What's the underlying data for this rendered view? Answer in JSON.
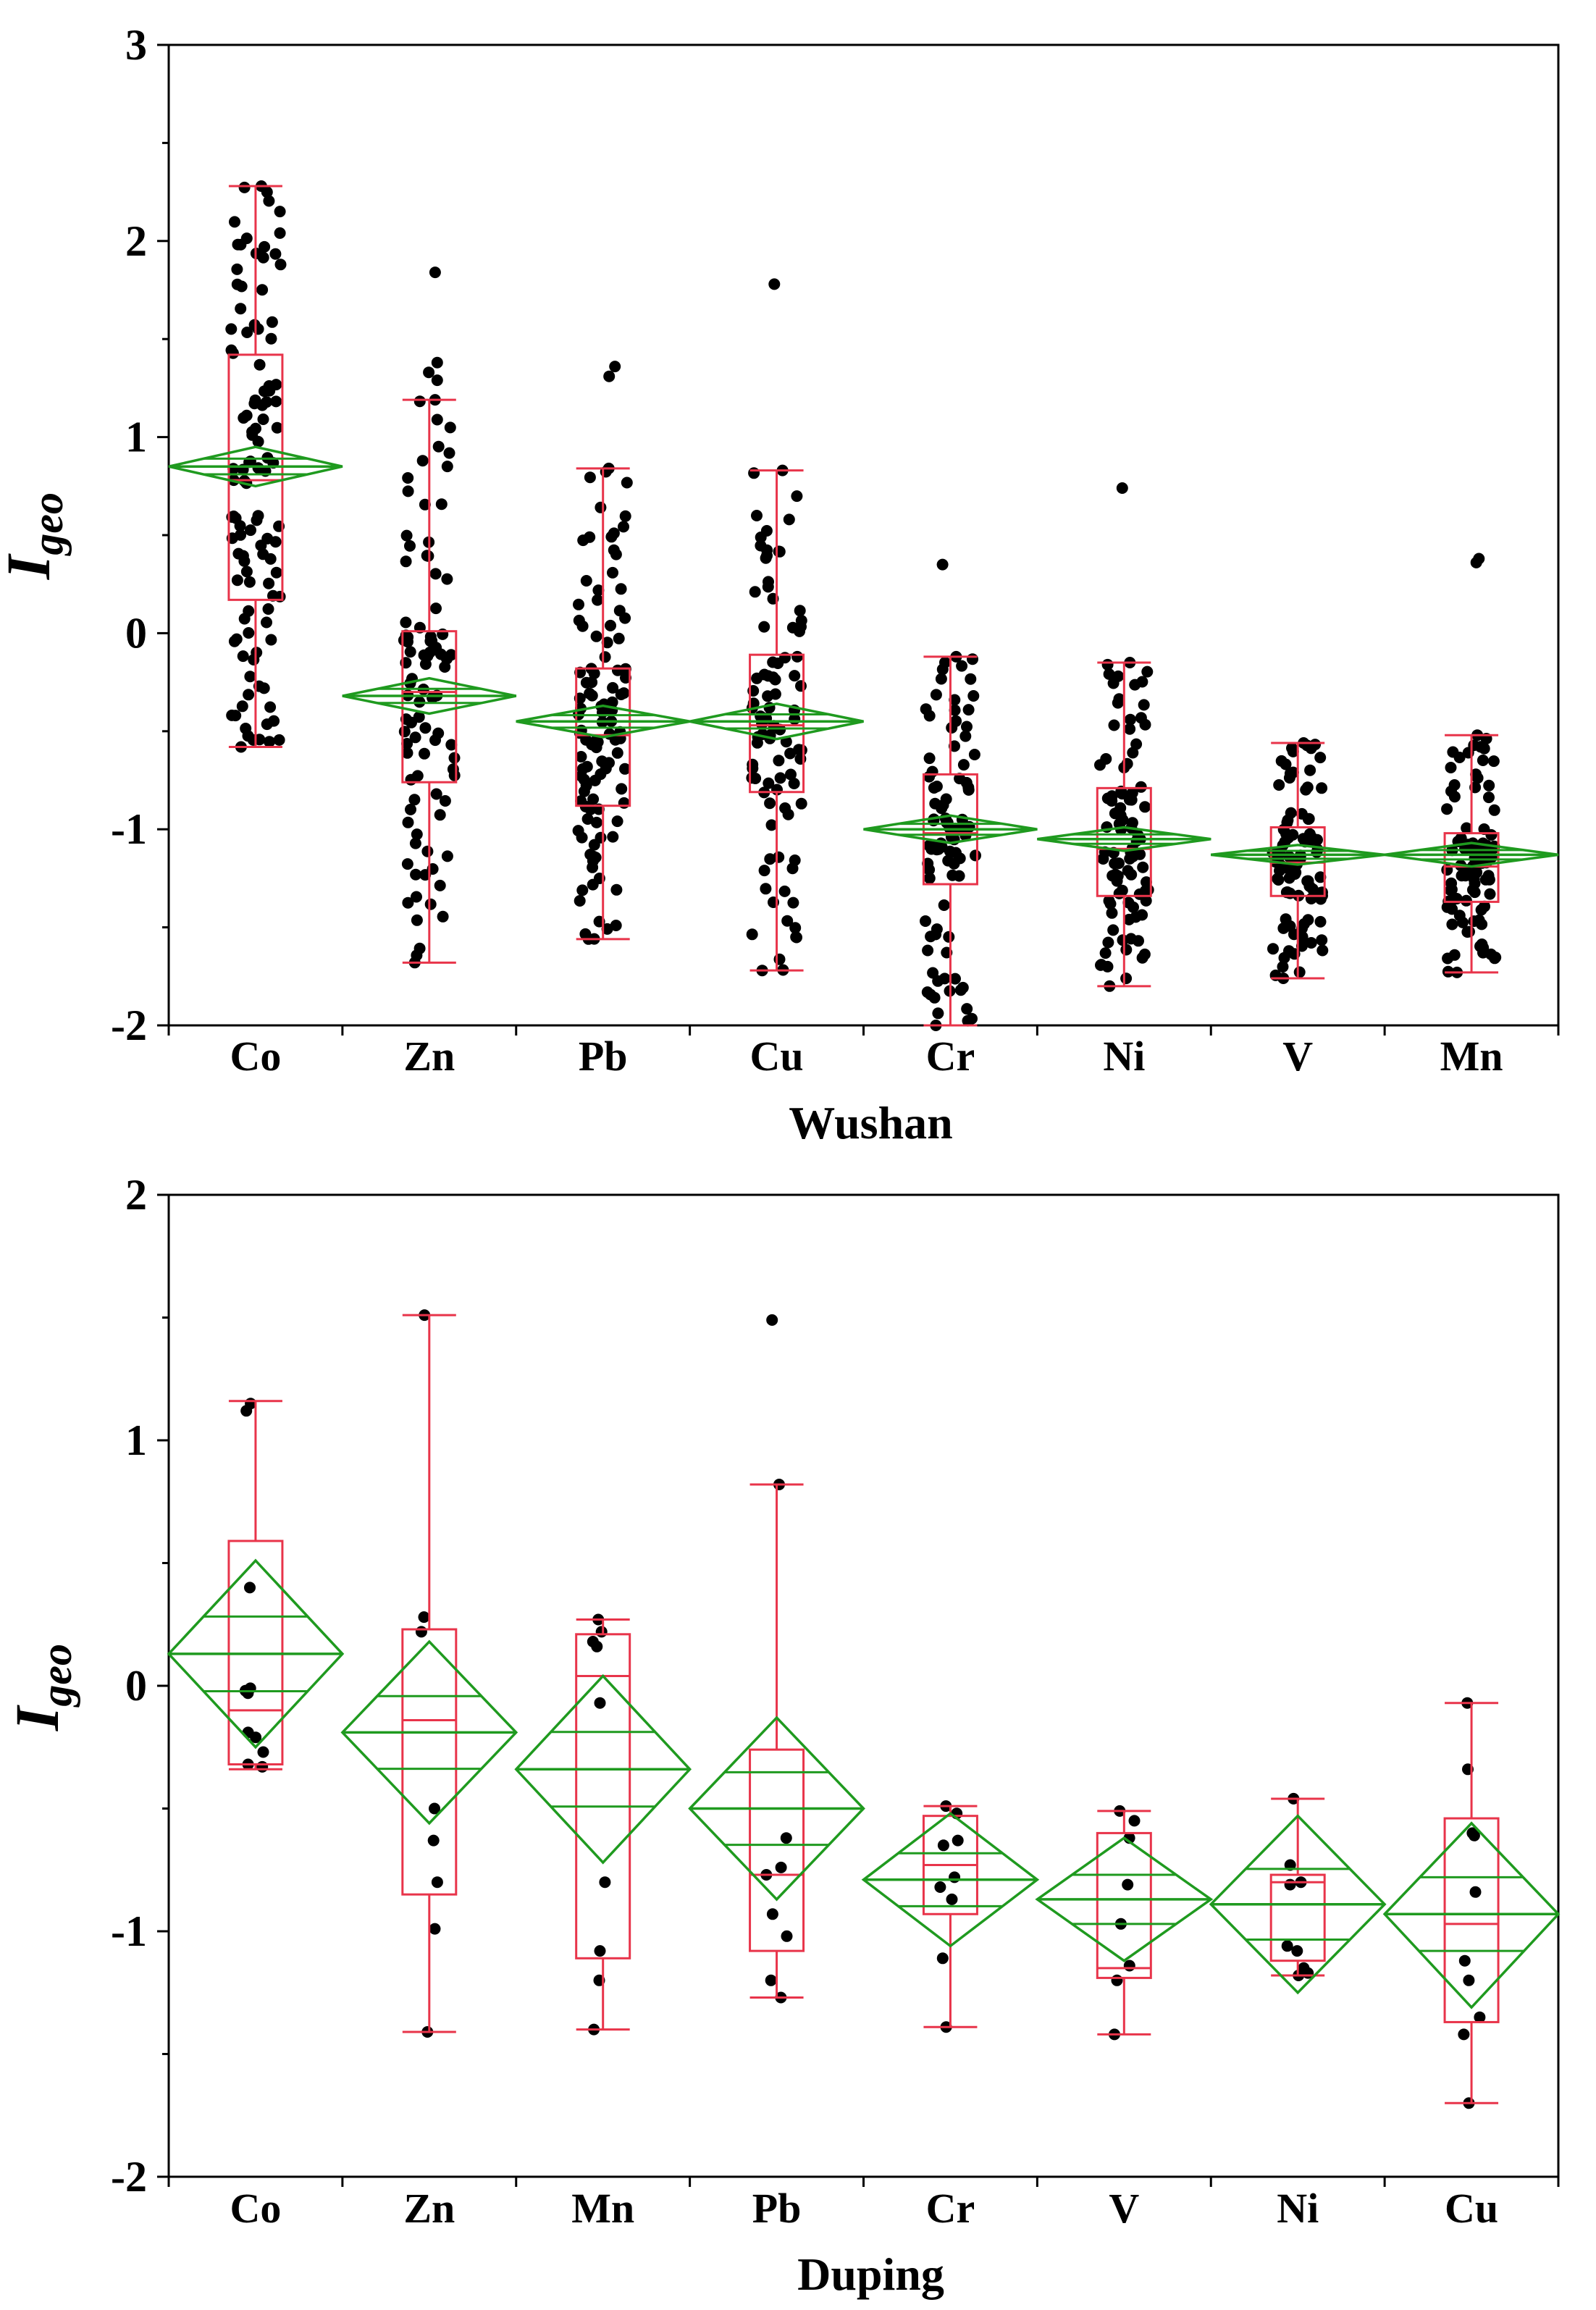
{
  "chart_data": [
    {
      "type": "box",
      "title": "",
      "xlabel": "Wushan",
      "ylabel_main": "I",
      "ylabel_sub": "geo",
      "ylim": [
        -2,
        3
      ],
      "yticks": [
        "-2",
        "-1",
        "0",
        "1",
        "2",
        "3"
      ],
      "categories": [
        "Co",
        "Zn",
        "Pb",
        "Cu",
        "Cr",
        "Ni",
        "V",
        "Mn"
      ],
      "colors": {
        "box": "#e8344a",
        "mean_diamond": "#1f9a1f",
        "points": "#000000"
      },
      "grid": false,
      "boxes": [
        {
          "name": "Co",
          "min": -0.58,
          "q1": 0.17,
          "median": 0.78,
          "q3": 1.42,
          "max": 2.28,
          "mean": 0.85,
          "ci": [
            0.75,
            0.95
          ],
          "n": 110,
          "seed": 11
        },
        {
          "name": "Zn",
          "min": -1.68,
          "q1": -0.76,
          "median": -0.3,
          "q3": 0.01,
          "max": 1.19,
          "mean": -0.32,
          "ci": [
            -0.41,
            -0.23
          ],
          "n": 90,
          "seed": 23,
          "extra": [
            1.84,
            1.38,
            1.33,
            1.29
          ]
        },
        {
          "name": "Pb",
          "min": -1.56,
          "q1": -0.88,
          "median": -0.52,
          "q3": -0.18,
          "max": 0.84,
          "mean": -0.45,
          "ci": [
            -0.53,
            -0.37
          ],
          "n": 110,
          "seed": 37,
          "extra": [
            1.36,
            1.31
          ]
        },
        {
          "name": "Cu",
          "min": -1.72,
          "q1": -0.81,
          "median": -0.47,
          "q3": -0.11,
          "max": 0.83,
          "mean": -0.45,
          "ci": [
            -0.54,
            -0.36
          ],
          "n": 90,
          "seed": 41,
          "extra": [
            1.78
          ]
        },
        {
          "name": "Cr",
          "min": -2.0,
          "q1": -1.28,
          "median": -1.02,
          "q3": -0.72,
          "max": -0.12,
          "mean": -1.0,
          "ci": [
            -1.07,
            -0.93
          ],
          "n": 90,
          "seed": 53,
          "extra": [
            0.35
          ]
        },
        {
          "name": "Ni",
          "min": -1.8,
          "q1": -1.34,
          "median": -1.1,
          "q3": -0.79,
          "max": -0.15,
          "mean": -1.05,
          "ci": [
            -1.11,
            -0.99
          ],
          "n": 90,
          "seed": 61,
          "extra": [
            0.74
          ]
        },
        {
          "name": "V",
          "min": -1.76,
          "q1": -1.34,
          "median": -1.17,
          "q3": -0.99,
          "max": -0.56,
          "mean": -1.13,
          "ci": [
            -1.18,
            -1.08
          ],
          "n": 90,
          "seed": 71
        },
        {
          "name": "Mn",
          "min": -1.73,
          "q1": -1.37,
          "median": -1.19,
          "q3": -1.02,
          "max": -0.52,
          "mean": -1.13,
          "ci": [
            -1.19,
            -1.07
          ],
          "n": 90,
          "seed": 83,
          "extra": [
            0.38,
            0.36
          ]
        }
      ]
    },
    {
      "type": "box",
      "title": "",
      "xlabel": "Duping",
      "ylabel_main": "I",
      "ylabel_sub": "geo",
      "ylim": [
        -2,
        2
      ],
      "yticks": [
        "-2",
        "-1",
        "0",
        "1",
        "2"
      ],
      "categories": [
        "Co",
        "Zn",
        "Mn",
        "Pb",
        "Cr",
        "V",
        "Ni",
        "Cu"
      ],
      "colors": {
        "box": "#e8344a",
        "mean_diamond": "#1f9a1f",
        "points": "#000000"
      },
      "grid": false,
      "boxes": [
        {
          "name": "Co",
          "min": -0.34,
          "q1": -0.32,
          "median": -0.1,
          "q3": 0.59,
          "max": 1.16,
          "mean": 0.13,
          "ci": [
            -0.25,
            0.51
          ],
          "points": [
            1.15,
            1.12,
            0.4,
            -0.01,
            -0.02,
            -0.03,
            -0.19,
            -0.21,
            -0.27,
            -0.32,
            -0.33
          ]
        },
        {
          "name": "Zn",
          "min": -1.41,
          "q1": -0.85,
          "median": -0.14,
          "q3": 0.23,
          "max": 1.51,
          "mean": -0.19,
          "ci": [
            -0.56,
            0.18
          ],
          "points": [
            1.51,
            0.28,
            0.22,
            -0.5,
            -0.63,
            -0.8,
            -0.99,
            -1.41
          ]
        },
        {
          "name": "Mn",
          "min": -1.4,
          "q1": -1.11,
          "median": 0.04,
          "q3": 0.21,
          "max": 0.27,
          "mean": -0.34,
          "ci": [
            -0.72,
            0.04
          ],
          "points": [
            0.27,
            0.22,
            0.18,
            0.16,
            -0.07,
            -0.8,
            -1.08,
            -1.2,
            -1.4
          ]
        },
        {
          "name": "Pb",
          "min": -1.27,
          "q1": -1.08,
          "median": -0.77,
          "q3": -0.26,
          "max": 0.82,
          "mean": -0.5,
          "ci": [
            -0.87,
            -0.13
          ],
          "points": [
            1.49,
            0.82,
            -0.62,
            -0.74,
            -0.77,
            -0.93,
            -1.02,
            -1.2,
            -1.27
          ]
        },
        {
          "name": "Cr",
          "min": -1.39,
          "q1": -0.93,
          "median": -0.73,
          "q3": -0.53,
          "max": -0.49,
          "mean": -0.79,
          "ci": [
            -1.06,
            -0.52
          ],
          "points": [
            -0.49,
            -0.52,
            -0.63,
            -0.65,
            -0.78,
            -0.82,
            -0.87,
            -1.11,
            -1.39
          ]
        },
        {
          "name": "V",
          "min": -1.42,
          "q1": -1.19,
          "median": -1.15,
          "q3": -0.6,
          "max": -0.51,
          "mean": -0.87,
          "ci": [
            -1.12,
            -0.62
          ],
          "points": [
            -0.51,
            -0.55,
            -0.62,
            -0.81,
            -0.97,
            -1.14,
            -1.2,
            -1.42
          ]
        },
        {
          "name": "Ni",
          "min": -1.18,
          "q1": -1.12,
          "median": -0.8,
          "q3": -0.77,
          "max": -0.46,
          "mean": -0.89,
          "ci": [
            -1.25,
            -0.53
          ],
          "points": [
            -0.46,
            -0.73,
            -0.8,
            -0.81,
            -1.06,
            -1.08,
            -1.15,
            -1.17,
            -1.18
          ]
        },
        {
          "name": "Cu",
          "min": -1.7,
          "q1": -1.37,
          "median": -0.97,
          "q3": -0.54,
          "max": -0.07,
          "mean": -0.93,
          "ci": [
            -1.31,
            -0.56
          ],
          "points": [
            -0.07,
            -0.34,
            -0.6,
            -0.61,
            -0.84,
            -1.12,
            -1.2,
            -1.35,
            -1.42,
            -1.7
          ]
        }
      ]
    }
  ]
}
